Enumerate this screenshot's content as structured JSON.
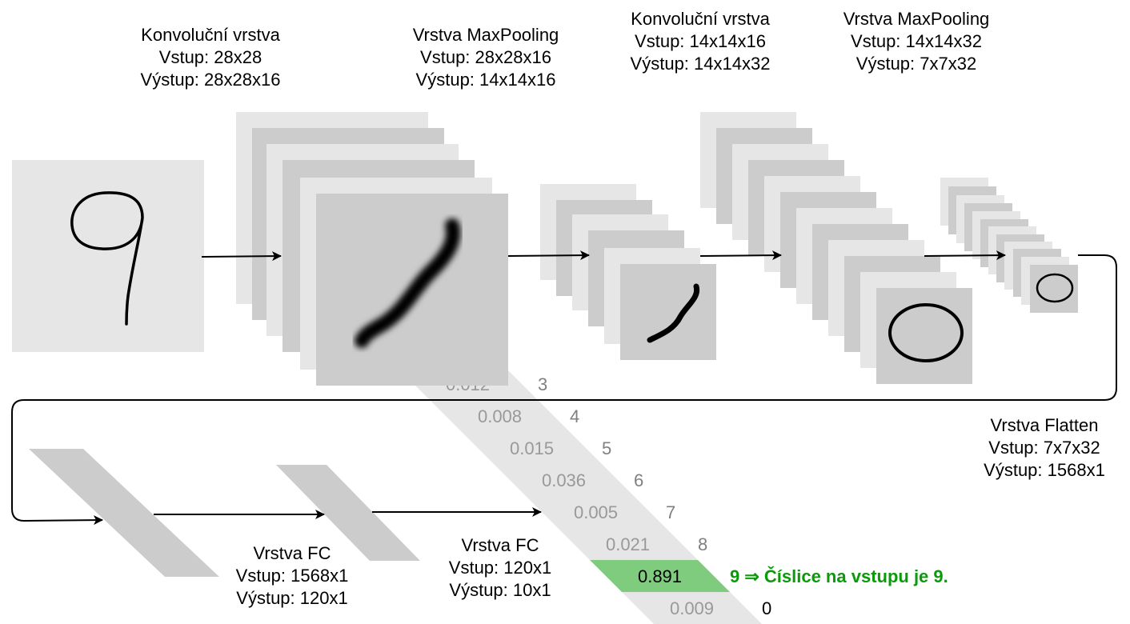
{
  "labels": {
    "conv1": {
      "title": "Konvoluční vrstva",
      "input": "Vstup: 28x28",
      "output": "Výstup: 28x28x16"
    },
    "pool1": {
      "title": "Vrstva MaxPooling",
      "input": "Vstup: 28x28x16",
      "output": "Výstup: 14x14x16"
    },
    "conv2": {
      "title": "Konvoluční vrstva",
      "input": "Vstup: 14x14x16",
      "output": "Výstup: 14x14x32"
    },
    "pool2": {
      "title": "Vrstva MaxPooling",
      "input": "Vstup: 14x14x32",
      "output": "Výstup: 7x7x32"
    },
    "flatten": {
      "title": "Vrstva Flatten",
      "input": "Vstup: 7x7x32",
      "output": "Výstup: 1568x1"
    },
    "fc1": {
      "title": "Vrstva FC",
      "input": "Vstup: 1568x1",
      "output": "Výstup: 120x1"
    },
    "fc2": {
      "title": "Vrstva FC",
      "input": "Vstup: 120x1",
      "output": "Výstup: 10x1"
    }
  },
  "outputs": [
    {
      "value": "0.012",
      "digit": "3"
    },
    {
      "value": "0.008",
      "digit": "4"
    },
    {
      "value": "0.015",
      "digit": "5"
    },
    {
      "value": "0.036",
      "digit": "6"
    },
    {
      "value": "0.005",
      "digit": "7"
    },
    {
      "value": "0.021",
      "digit": "8"
    },
    {
      "value": "0.891",
      "digit": "9"
    },
    {
      "value": "0.009",
      "digit": "0"
    }
  ],
  "result_text": "⇒ Číslice na vstupu je 9.",
  "colors": {
    "light_map": "#e6e6e6",
    "dark_map": "#cccccc",
    "highlight": "#7fcc7f",
    "result_text": "#0a9a0a",
    "value_text": "#999999",
    "digit_text": "#808080"
  }
}
